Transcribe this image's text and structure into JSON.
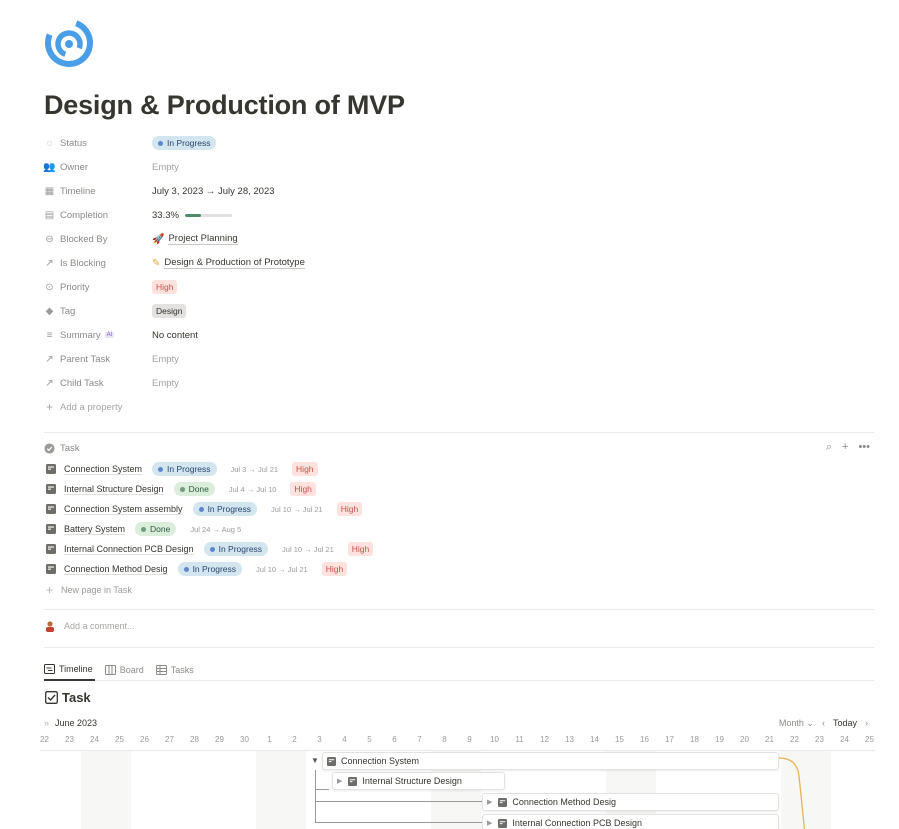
{
  "page": {
    "title": "Design & Production of MVP",
    "logo_icon": "circle-swirl-icon",
    "accent": "#4a9ee8"
  },
  "properties": [
    {
      "label": "Status",
      "icon": "status-icon",
      "type": "status",
      "value": "In Progress"
    },
    {
      "label": "Owner",
      "icon": "people-icon",
      "type": "empty",
      "value": "Empty"
    },
    {
      "label": "Timeline",
      "icon": "calendar-icon",
      "type": "text",
      "value": "July 3, 2023 → July 28, 2023"
    },
    {
      "label": "Completion",
      "icon": "sigma-icon",
      "type": "progress",
      "value": "33.3%",
      "fraction": 0.333
    },
    {
      "label": "Blocked By",
      "icon": "blocked-icon",
      "type": "relation",
      "value": "Project Planning"
    },
    {
      "label": "Is Blocking",
      "icon": "arrow-up-right-icon",
      "type": "relation",
      "value": "Design & Production of Prototype"
    },
    {
      "label": "Priority",
      "icon": "priority-icon",
      "type": "tag-high",
      "value": "High"
    },
    {
      "label": "Tag",
      "icon": "tag-icon",
      "type": "tag",
      "value": "Design"
    },
    {
      "label": "Summary",
      "icon": "lines-icon",
      "type": "text",
      "value": "No content",
      "badge": "AI"
    },
    {
      "label": "Parent Task",
      "icon": "arrow-up-right-icon",
      "type": "empty",
      "value": "Empty"
    },
    {
      "label": "Child Task",
      "icon": "arrow-up-right-icon",
      "type": "empty",
      "value": "Empty"
    }
  ],
  "add_property": "Add a property",
  "task_section": {
    "label": "Task",
    "rows": [
      {
        "name": "Connection System",
        "status": "In Progress",
        "status_type": "progress",
        "date": "Jul 3 → Jul 21",
        "priority": "High"
      },
      {
        "name": "Internal Structure Design",
        "status": "Done",
        "status_type": "done",
        "date": "Jul 4 → Jul 10",
        "priority": "High"
      },
      {
        "name": "Connection System assembly",
        "status": "In Progress",
        "status_type": "progress",
        "date": "Jul 10 → Jul 21",
        "priority": "High"
      },
      {
        "name": "Battery System",
        "status": "Done",
        "status_type": "done",
        "date": "Jul 24 → Aug 5",
        "priority": ""
      },
      {
        "name": "Internal Connection PCB Design",
        "status": "In Progress",
        "status_type": "progress",
        "date": "Jul 10 → Jul 21",
        "priority": "High"
      },
      {
        "name": "Connection Method Desig",
        "status": "In Progress",
        "status_type": "progress",
        "date": "Jul 10 → Jul 21",
        "priority": "High"
      }
    ],
    "new_page": "New page in Task"
  },
  "comment_placeholder": "Add a comment...",
  "view_tabs": [
    "Timeline",
    "Board",
    "Tasks"
  ],
  "database_title": "Task",
  "timeline": {
    "month_label": "June 2023",
    "scale": "Month",
    "today": "Today",
    "days": [
      "22",
      "23",
      "24",
      "25",
      "26",
      "27",
      "28",
      "29",
      "30",
      "1",
      "2",
      "3",
      "4",
      "5",
      "6",
      "7",
      "8",
      "9",
      "10",
      "11",
      "12",
      "13",
      "14",
      "15",
      "16",
      "17",
      "18",
      "19",
      "20",
      "21",
      "22",
      "23",
      "24",
      "25"
    ],
    "bars": [
      {
        "name": "Connection System"
      },
      {
        "name": "Internal Structure Design"
      },
      {
        "name": "Connection Method Desig"
      },
      {
        "name": "Internal Connection PCB Design"
      }
    ]
  }
}
